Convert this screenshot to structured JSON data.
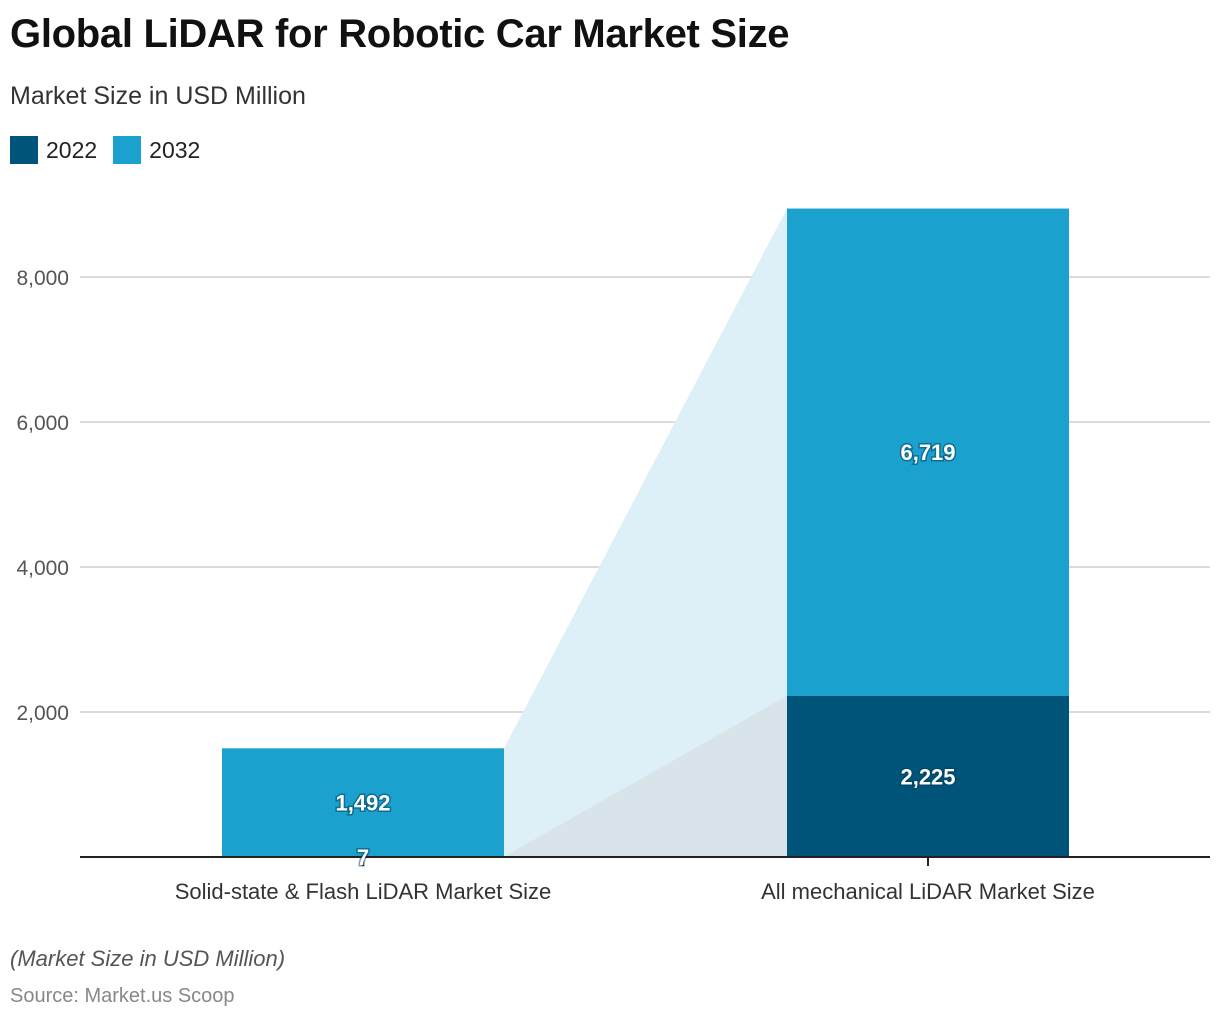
{
  "title": "Global LiDAR for Robotic Car Market Size",
  "subtitle": "Market Size in USD Million",
  "note": "(Market Size in USD Million)",
  "source": "Source: Market.us Scoop",
  "colors": {
    "2022": "#00547a",
    "2032": "#1aa1cd",
    "band_2032": "#ddf0f7",
    "band_2022": "#d8e3ea"
  },
  "chart_data": {
    "type": "bar",
    "stacked": true,
    "categories": [
      "Solid-state & Flash LiDAR Market Size",
      "All mechanical LiDAR Market Size"
    ],
    "series": [
      {
        "name": "2022",
        "values": [
          7,
          2225
        ],
        "labels": [
          "7",
          "2,225"
        ]
      },
      {
        "name": "2032",
        "values": [
          1492,
          6719
        ],
        "labels": [
          "1,492",
          "6,719"
        ]
      }
    ],
    "yticks": [
      2000,
      4000,
      6000,
      8000
    ],
    "ytick_labels": [
      "2,000",
      "4,000",
      "6,000",
      "8,000"
    ],
    "ylim": [
      0,
      9000
    ],
    "grid": true,
    "legend": "top-left",
    "title": "Global LiDAR for Robotic Car Market Size",
    "xlabel": "",
    "ylabel": ""
  }
}
